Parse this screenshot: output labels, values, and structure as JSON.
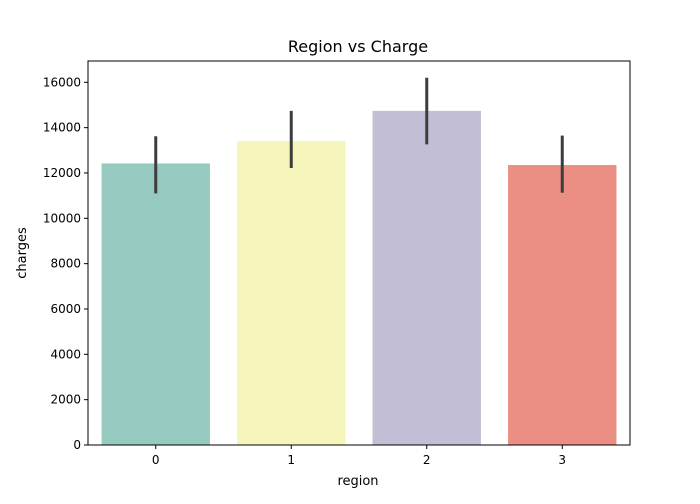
{
  "chart_data": {
    "type": "bar",
    "title": "Region vs Charge",
    "xlabel": "region",
    "ylabel": "charges",
    "categories": [
      "0",
      "1",
      "2",
      "3"
    ],
    "values": [
      12420,
      13410,
      14740,
      12350
    ],
    "error_bars": [
      {
        "low": 11100,
        "high": 13620
      },
      {
        "low": 12220,
        "high": 14740
      },
      {
        "low": 13260,
        "high": 16200
      },
      {
        "low": 11130,
        "high": 13650
      }
    ],
    "colors": [
      "#96cac1",
      "#f6f6bc",
      "#c1bed6",
      "#eb8e83"
    ],
    "error_color": "#3d3d3d",
    "ylim": [
      0,
      16940
    ],
    "yticks": [
      0,
      2000,
      4000,
      6000,
      8000,
      10000,
      12000,
      14000,
      16000
    ],
    "grid": false
  }
}
